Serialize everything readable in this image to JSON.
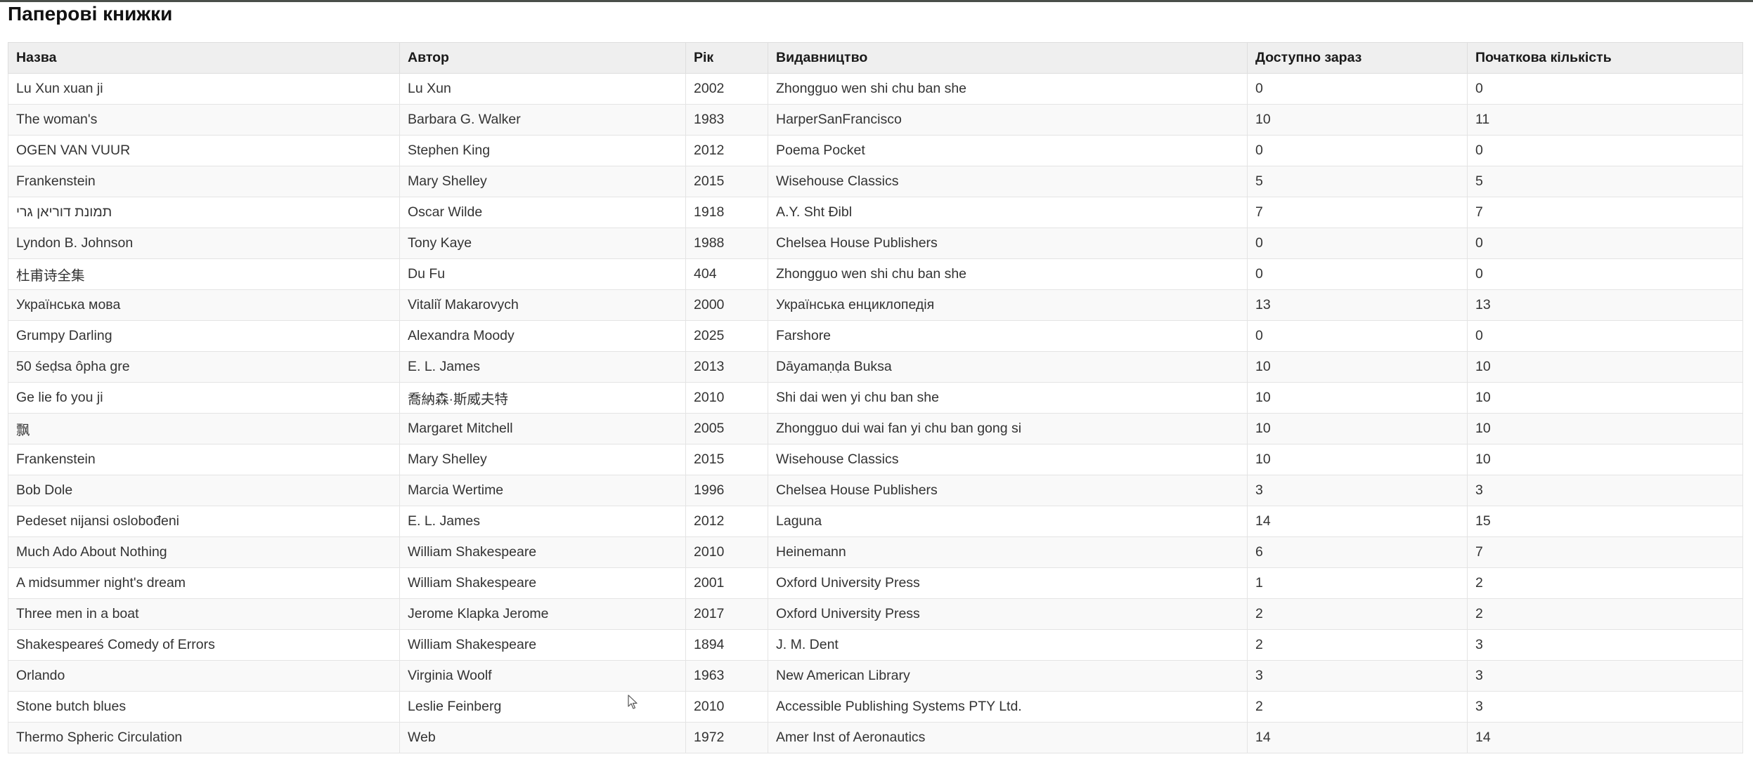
{
  "page": {
    "title": "Паперові книжки"
  },
  "table": {
    "headers": {
      "title": "Назва",
      "author": "Автор",
      "year": "Рік",
      "publisher": "Видавництво",
      "available": "Доступно зараз",
      "initial": "Початкова кількість"
    },
    "rows": [
      {
        "title": "Lu Xun xuan ji",
        "author": "Lu Xun",
        "year": "2002",
        "publisher": "Zhongguo wen shi chu ban she",
        "available": "0",
        "initial": "0"
      },
      {
        "title": "The woman's",
        "author": "Barbara G. Walker",
        "year": "1983",
        "publisher": "HarperSanFrancisco",
        "available": "10",
        "initial": "11"
      },
      {
        "title": "OGEN VAN VUUR",
        "author": "Stephen King",
        "year": "2012",
        "publisher": "Poema Pocket",
        "available": "0",
        "initial": "0"
      },
      {
        "title": "Frankenstein",
        "author": "Mary Shelley",
        "year": "2015",
        "publisher": "Wisehouse Classics",
        "available": "5",
        "initial": "5"
      },
      {
        "title": "תמונת דוריאן גרי",
        "author": "Oscar Wilde",
        "year": "1918",
        "publisher": "A.Y. Sht Ðibl",
        "available": "7",
        "initial": "7"
      },
      {
        "title": "Lyndon B. Johnson",
        "author": "Tony Kaye",
        "year": "1988",
        "publisher": "Chelsea House Publishers",
        "available": "0",
        "initial": "0"
      },
      {
        "title": "杜甫诗全集",
        "author": "Du Fu",
        "year": "404",
        "publisher": "Zhongguo wen shi chu ban she",
        "available": "0",
        "initial": "0"
      },
      {
        "title": "Українська мова",
        "author": "Vitaliĭ Makarovych",
        "year": "2000",
        "publisher": "Українська енциклопедія",
        "available": "13",
        "initial": "13"
      },
      {
        "title": "Grumpy Darling",
        "author": "Alexandra Moody",
        "year": "2025",
        "publisher": "Farshore",
        "available": "0",
        "initial": "0"
      },
      {
        "title": "50 śeḍsa ôpha gre",
        "author": "E. L. James",
        "year": "2013",
        "publisher": "Dāyamaṇḍa Buksa",
        "available": "10",
        "initial": "10"
      },
      {
        "title": "Ge lie fo you ji",
        "author": "喬納森·斯威夫特",
        "year": "2010",
        "publisher": "Shi dai wen yi chu ban she",
        "available": "10",
        "initial": "10"
      },
      {
        "title": "飘",
        "author": "Margaret Mitchell",
        "year": "2005",
        "publisher": "Zhongguo dui wai fan yi chu ban gong si",
        "available": "10",
        "initial": "10"
      },
      {
        "title": "Frankenstein",
        "author": "Mary Shelley",
        "year": "2015",
        "publisher": "Wisehouse Classics",
        "available": "10",
        "initial": "10"
      },
      {
        "title": "Bob Dole",
        "author": "Marcia Wertime",
        "year": "1996",
        "publisher": "Chelsea House Publishers",
        "available": "3",
        "initial": "3"
      },
      {
        "title": "Pedeset nijansi oslobođeni",
        "author": "E. L. James",
        "year": "2012",
        "publisher": "Laguna",
        "available": "14",
        "initial": "15"
      },
      {
        "title": "Much Ado About Nothing",
        "author": "William Shakespeare",
        "year": "2010",
        "publisher": "Heinemann",
        "available": "6",
        "initial": "7"
      },
      {
        "title": "A midsummer night's dream",
        "author": "William Shakespeare",
        "year": "2001",
        "publisher": "Oxford University Press",
        "available": "1",
        "initial": "2"
      },
      {
        "title": "Three men in a boat",
        "author": "Jerome Klapka Jerome",
        "year": "2017",
        "publisher": "Oxford University Press",
        "available": "2",
        "initial": "2"
      },
      {
        "title": "Shakespeareś Comedy of Errors",
        "author": "William Shakespeare",
        "year": "1894",
        "publisher": "J. M. Dent",
        "available": "2",
        "initial": "3"
      },
      {
        "title": "Orlando",
        "author": "Virginia Woolf",
        "year": "1963",
        "publisher": "New American Library",
        "available": "3",
        "initial": "3"
      },
      {
        "title": "Stone butch blues",
        "author": "Leslie Feinberg",
        "year": "2010",
        "publisher": "Accessible Publishing Systems PTY Ltd.",
        "available": "2",
        "initial": "3"
      },
      {
        "title": "Thermo Spheric Circulation",
        "author": "Web",
        "year": "1972",
        "publisher": "Amer Inst of Aeronautics",
        "available": "14",
        "initial": "14"
      }
    ]
  },
  "icons": {
    "cursor": "mouse-pointer-icon"
  }
}
